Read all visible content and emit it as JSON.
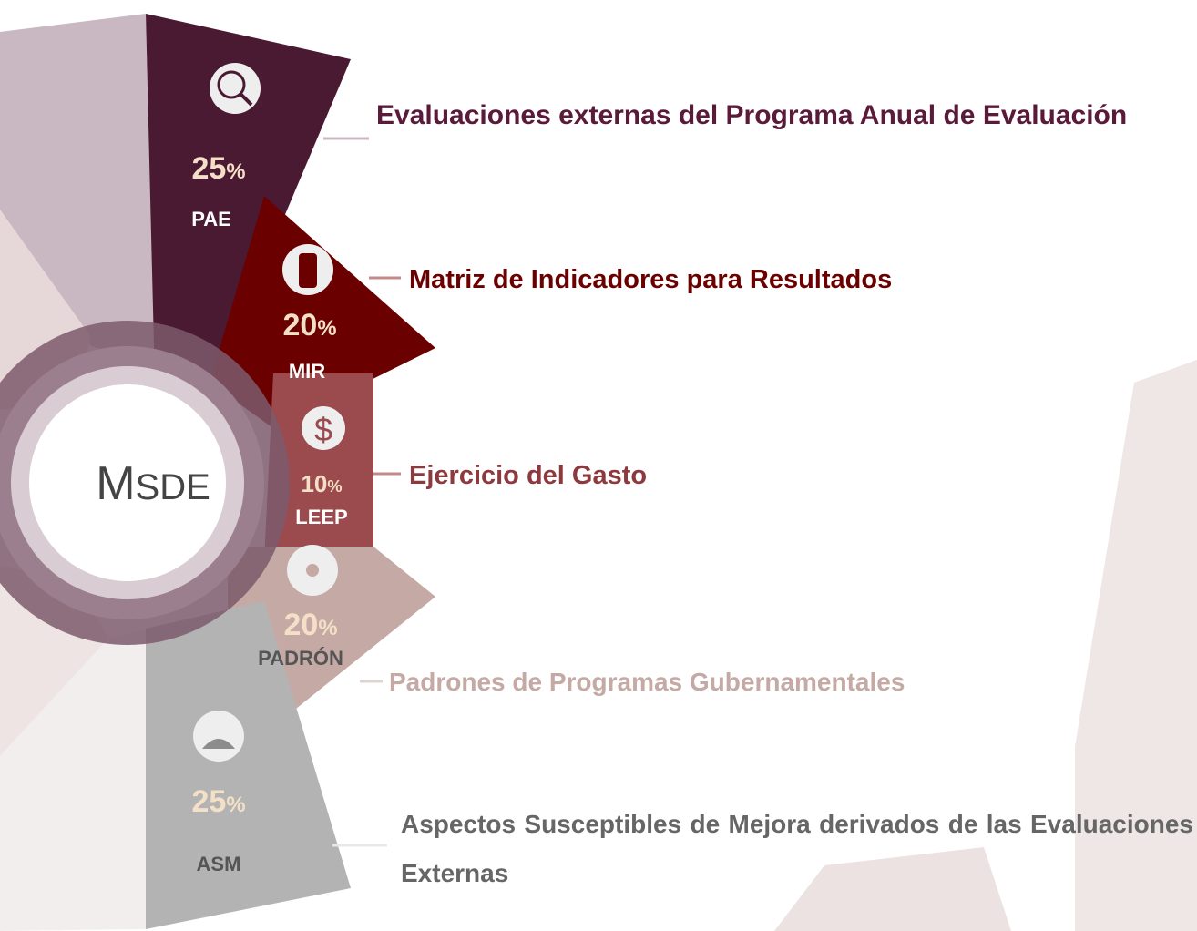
{
  "center": {
    "initial": "M",
    "rest": "SDE"
  },
  "segments": [
    {
      "value": "25",
      "unit": "%",
      "code": "PAE",
      "description": "Evaluaciones externas del Programa Anual de Evaluación"
    },
    {
      "value": "20",
      "unit": "%",
      "code": "MIR",
      "description": "Matriz de Indicadores para Resultados"
    },
    {
      "value": "10",
      "unit": "%",
      "code": "LEEP",
      "description": "Ejercicio del Gasto"
    },
    {
      "value": "20",
      "unit": "%",
      "code": "PADRÓN",
      "description": "Padrones de Programas Gubernamentales"
    },
    {
      "value": "25",
      "unit": "%",
      "code": "ASM",
      "description": "Aspectos Susceptibles de Mejora derivados de las Evaluaciones Externas"
    }
  ]
}
